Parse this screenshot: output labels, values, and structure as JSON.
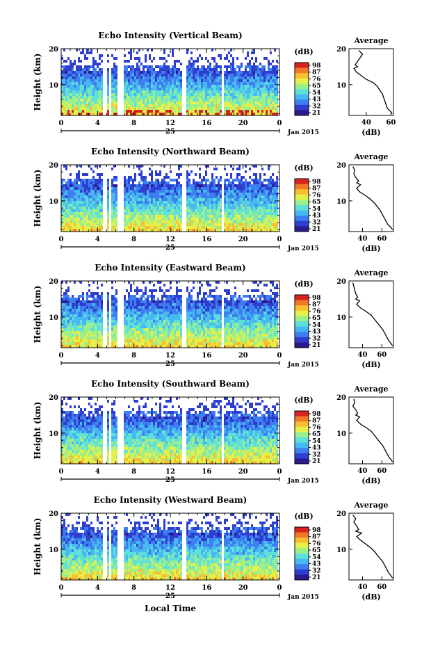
{
  "figure": {
    "x_axis_label": "Local Time",
    "date_label": "Jan 2015",
    "day_label": "25",
    "average_title": "Average",
    "colorbar_unit": "(dB)",
    "avg_xlabel": "(dB)",
    "y_axis_label": "Height (km)"
  },
  "chart_data": [
    {
      "type": "heatmap",
      "title": "Echo Intensity (Vertical Beam)",
      "ylabel": "Height (km)",
      "xlabel": "Local Time",
      "x_ticks": [
        "0",
        "4",
        "8",
        "12",
        "16",
        "20",
        "0"
      ],
      "xlim": [
        0,
        24
      ],
      "y_ticks": [
        "10",
        "20"
      ],
      "ylim": [
        1.5,
        20
      ],
      "colorbar": {
        "label": "(dB)",
        "ticks": [
          "98",
          "87",
          "76",
          "65",
          "54",
          "43",
          "32",
          "21"
        ]
      },
      "data_gaps_hours": [
        [
          4.7,
          5.0
        ],
        [
          5.3,
          5.5
        ],
        [
          6.2,
          6.8
        ],
        [
          13.4,
          13.8
        ],
        [
          17.6,
          17.9
        ]
      ],
      "average_profile": {
        "title": "Average",
        "xlabel": "(dB)",
        "x_ticks": [
          "40",
          "60"
        ],
        "xlim": [
          26,
          62
        ],
        "y_ticks": [
          "10",
          "20"
        ],
        "height_km": [
          19.5,
          18.5,
          17.5,
          16.5,
          15.5,
          15.0,
          14.5,
          13.5,
          12.5,
          11.5,
          10.5,
          9.5,
          8.5,
          7.5,
          6.5,
          5.5,
          4.5,
          3.5,
          2.5,
          2.0
        ],
        "db": [
          34,
          37,
          35,
          33,
          31,
          33,
          30,
          32,
          36,
          40,
          46,
          49,
          51,
          53,
          54,
          55,
          56,
          57,
          60,
          61
        ]
      }
    },
    {
      "type": "heatmap",
      "title": "Echo Intensity (Northward Beam)",
      "ylabel": "Height (km)",
      "xlabel": "Local Time",
      "x_ticks": [
        "0",
        "4",
        "8",
        "12",
        "16",
        "20",
        "0"
      ],
      "xlim": [
        0,
        24
      ],
      "y_ticks": [
        "10",
        "20"
      ],
      "ylim": [
        1.5,
        20
      ],
      "colorbar": {
        "label": "(dB)",
        "ticks": [
          "98",
          "87",
          "76",
          "65",
          "54",
          "43",
          "32",
          "21"
        ]
      },
      "data_gaps_hours": [
        [
          4.7,
          5.0
        ],
        [
          5.3,
          5.5
        ],
        [
          6.2,
          6.8
        ],
        [
          13.4,
          13.8
        ],
        [
          17.6,
          17.9
        ]
      ],
      "average_profile": {
        "title": "Average",
        "xlabel": "(dB)",
        "x_ticks": [
          "40",
          "60"
        ],
        "xlim": [
          26,
          72
        ],
        "y_ticks": [
          "10",
          "20"
        ],
        "height_km": [
          19.5,
          18.5,
          17.5,
          16.5,
          15.5,
          15.0,
          14.5,
          13.5,
          12.5,
          11.5,
          10.5,
          9.5,
          8.5,
          7.5,
          6.5,
          5.5,
          4.5,
          3.5,
          2.5,
          2.0
        ],
        "db": [
          30,
          32,
          31,
          33,
          36,
          34,
          38,
          34,
          37,
          43,
          48,
          52,
          55,
          58,
          60,
          62,
          64,
          66,
          70,
          71
        ]
      }
    },
    {
      "type": "heatmap",
      "title": "Echo Intensity (Eastward Beam)",
      "ylabel": "Height (km)",
      "xlabel": "Local Time",
      "x_ticks": [
        "0",
        "4",
        "8",
        "12",
        "16",
        "20",
        "0"
      ],
      "xlim": [
        0,
        24
      ],
      "y_ticks": [
        "10",
        "20"
      ],
      "ylim": [
        1.5,
        20
      ],
      "colorbar": {
        "label": "(dB)",
        "ticks": [
          "98",
          "87",
          "76",
          "65",
          "54",
          "43",
          "32",
          "21"
        ]
      },
      "data_gaps_hours": [
        [
          4.7,
          5.0
        ],
        [
          5.3,
          5.5
        ],
        [
          6.2,
          6.8
        ],
        [
          13.4,
          13.8
        ],
        [
          17.6,
          17.9
        ]
      ],
      "average_profile": {
        "title": "Average",
        "xlabel": "(dB)",
        "x_ticks": [
          "40",
          "60"
        ],
        "xlim": [
          26,
          72
        ],
        "y_ticks": [
          "10",
          "20"
        ],
        "height_km": [
          19.5,
          18.5,
          17.5,
          16.5,
          15.5,
          15.0,
          14.5,
          13.5,
          12.5,
          11.5,
          10.5,
          9.5,
          8.5,
          7.5,
          6.5,
          5.5,
          4.5,
          3.5,
          2.5,
          2.0
        ],
        "db": [
          30,
          31,
          32,
          33,
          35,
          33,
          37,
          34,
          38,
          44,
          49,
          52,
          55,
          58,
          61,
          63,
          65,
          67,
          70,
          71
        ]
      }
    },
    {
      "type": "heatmap",
      "title": "Echo Intensity (Southward Beam)",
      "ylabel": "Height (km)",
      "xlabel": "Local Time",
      "x_ticks": [
        "0",
        "4",
        "8",
        "12",
        "16",
        "20",
        "0"
      ],
      "xlim": [
        0,
        24
      ],
      "y_ticks": [
        "10",
        "20"
      ],
      "ylim": [
        1.5,
        20
      ],
      "colorbar": {
        "label": "(dB)",
        "ticks": [
          "98",
          "87",
          "76",
          "65",
          "54",
          "43",
          "32",
          "21"
        ]
      },
      "data_gaps_hours": [
        [
          4.7,
          5.0
        ],
        [
          5.3,
          5.5
        ],
        [
          6.2,
          6.8
        ],
        [
          13.4,
          13.8
        ],
        [
          17.6,
          17.9
        ]
      ],
      "average_profile": {
        "title": "Average",
        "xlabel": "(dB)",
        "x_ticks": [
          "40",
          "60"
        ],
        "xlim": [
          26,
          72
        ],
        "y_ticks": [
          "10",
          "20"
        ],
        "height_km": [
          19.5,
          18.5,
          17.5,
          16.5,
          15.5,
          15.0,
          14.5,
          13.5,
          12.5,
          11.5,
          10.5,
          9.5,
          8.5,
          7.5,
          6.5,
          5.5,
          4.5,
          3.5,
          2.5,
          2.0
        ],
        "db": [
          31,
          32,
          30,
          33,
          35,
          33,
          37,
          34,
          38,
          44,
          49,
          52,
          55,
          58,
          61,
          63,
          65,
          67,
          70,
          71
        ]
      }
    },
    {
      "type": "heatmap",
      "title": "Echo Intensity (Westward Beam)",
      "ylabel": "Height (km)",
      "xlabel": "Local Time",
      "x_ticks": [
        "0",
        "4",
        "8",
        "12",
        "16",
        "20",
        "0"
      ],
      "xlim": [
        0,
        24
      ],
      "y_ticks": [
        "10",
        "20"
      ],
      "ylim": [
        1.5,
        20
      ],
      "colorbar": {
        "label": "(dB)",
        "ticks": [
          "98",
          "87",
          "76",
          "65",
          "54",
          "43",
          "32",
          "21"
        ]
      },
      "data_gaps_hours": [
        [
          4.7,
          5.0
        ],
        [
          5.3,
          5.5
        ],
        [
          6.2,
          6.8
        ],
        [
          13.4,
          13.8
        ],
        [
          17.6,
          17.9
        ]
      ],
      "average_profile": {
        "title": "Average",
        "xlabel": "(dB)",
        "x_ticks": [
          "40",
          "60"
        ],
        "xlim": [
          26,
          72
        ],
        "y_ticks": [
          "10",
          "20"
        ],
        "height_km": [
          19.5,
          18.5,
          17.5,
          16.5,
          15.5,
          15.0,
          14.5,
          13.5,
          12.5,
          11.5,
          10.5,
          9.5,
          8.5,
          7.5,
          6.5,
          5.5,
          4.5,
          3.5,
          2.5,
          2.0
        ],
        "db": [
          30,
          33,
          31,
          34,
          36,
          33,
          39,
          34,
          38,
          43,
          48,
          52,
          55,
          58,
          61,
          63,
          65,
          67,
          70,
          71
        ]
      }
    }
  ],
  "colormap": [
    "#2b1a8f",
    "#2e3fd0",
    "#3d7ff0",
    "#47b8f0",
    "#5fe0d8",
    "#9cf08c",
    "#e6f04a",
    "#f8c030",
    "#f07a2a",
    "#d8231e"
  ]
}
